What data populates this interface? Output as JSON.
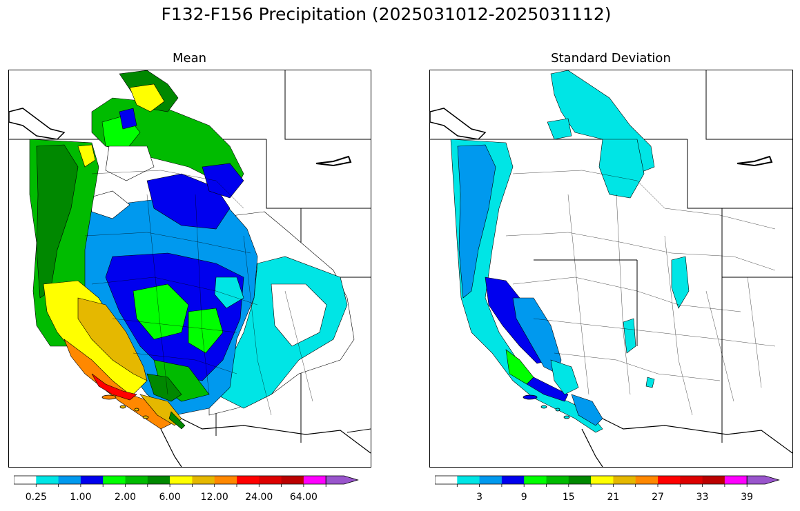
{
  "figure": {
    "title": "F132-F156 Precipitation (2025031012-2025031112)"
  },
  "panels": [
    {
      "title": "Mean",
      "colorbar": {
        "colors": [
          "#ffffff",
          "#00e5e5",
          "#0099ee",
          "#0000ee",
          "#00ff00",
          "#00bb00",
          "#008800",
          "#ffff00",
          "#e5b800",
          "#ff8800",
          "#ff0000",
          "#dd0000",
          "#bb0000",
          "#ff00ff",
          "#9955cc"
        ],
        "tick_labels": [
          "0.25",
          "1.00",
          "2.00",
          "6.00",
          "12.00",
          "24.00",
          "64.00"
        ],
        "extend": "max"
      }
    },
    {
      "title": "Standard Deviation",
      "colorbar": {
        "colors": [
          "#ffffff",
          "#00e5e5",
          "#0099ee",
          "#0000ee",
          "#00ff00",
          "#00bb00",
          "#008800",
          "#ffff00",
          "#e5b800",
          "#ff8800",
          "#ff0000",
          "#dd0000",
          "#bb0000",
          "#ff00ff",
          "#9955cc"
        ],
        "tick_labels": [
          "3",
          "9",
          "15",
          "21",
          "27",
          "33",
          "39"
        ],
        "extend": "max"
      }
    }
  ]
}
